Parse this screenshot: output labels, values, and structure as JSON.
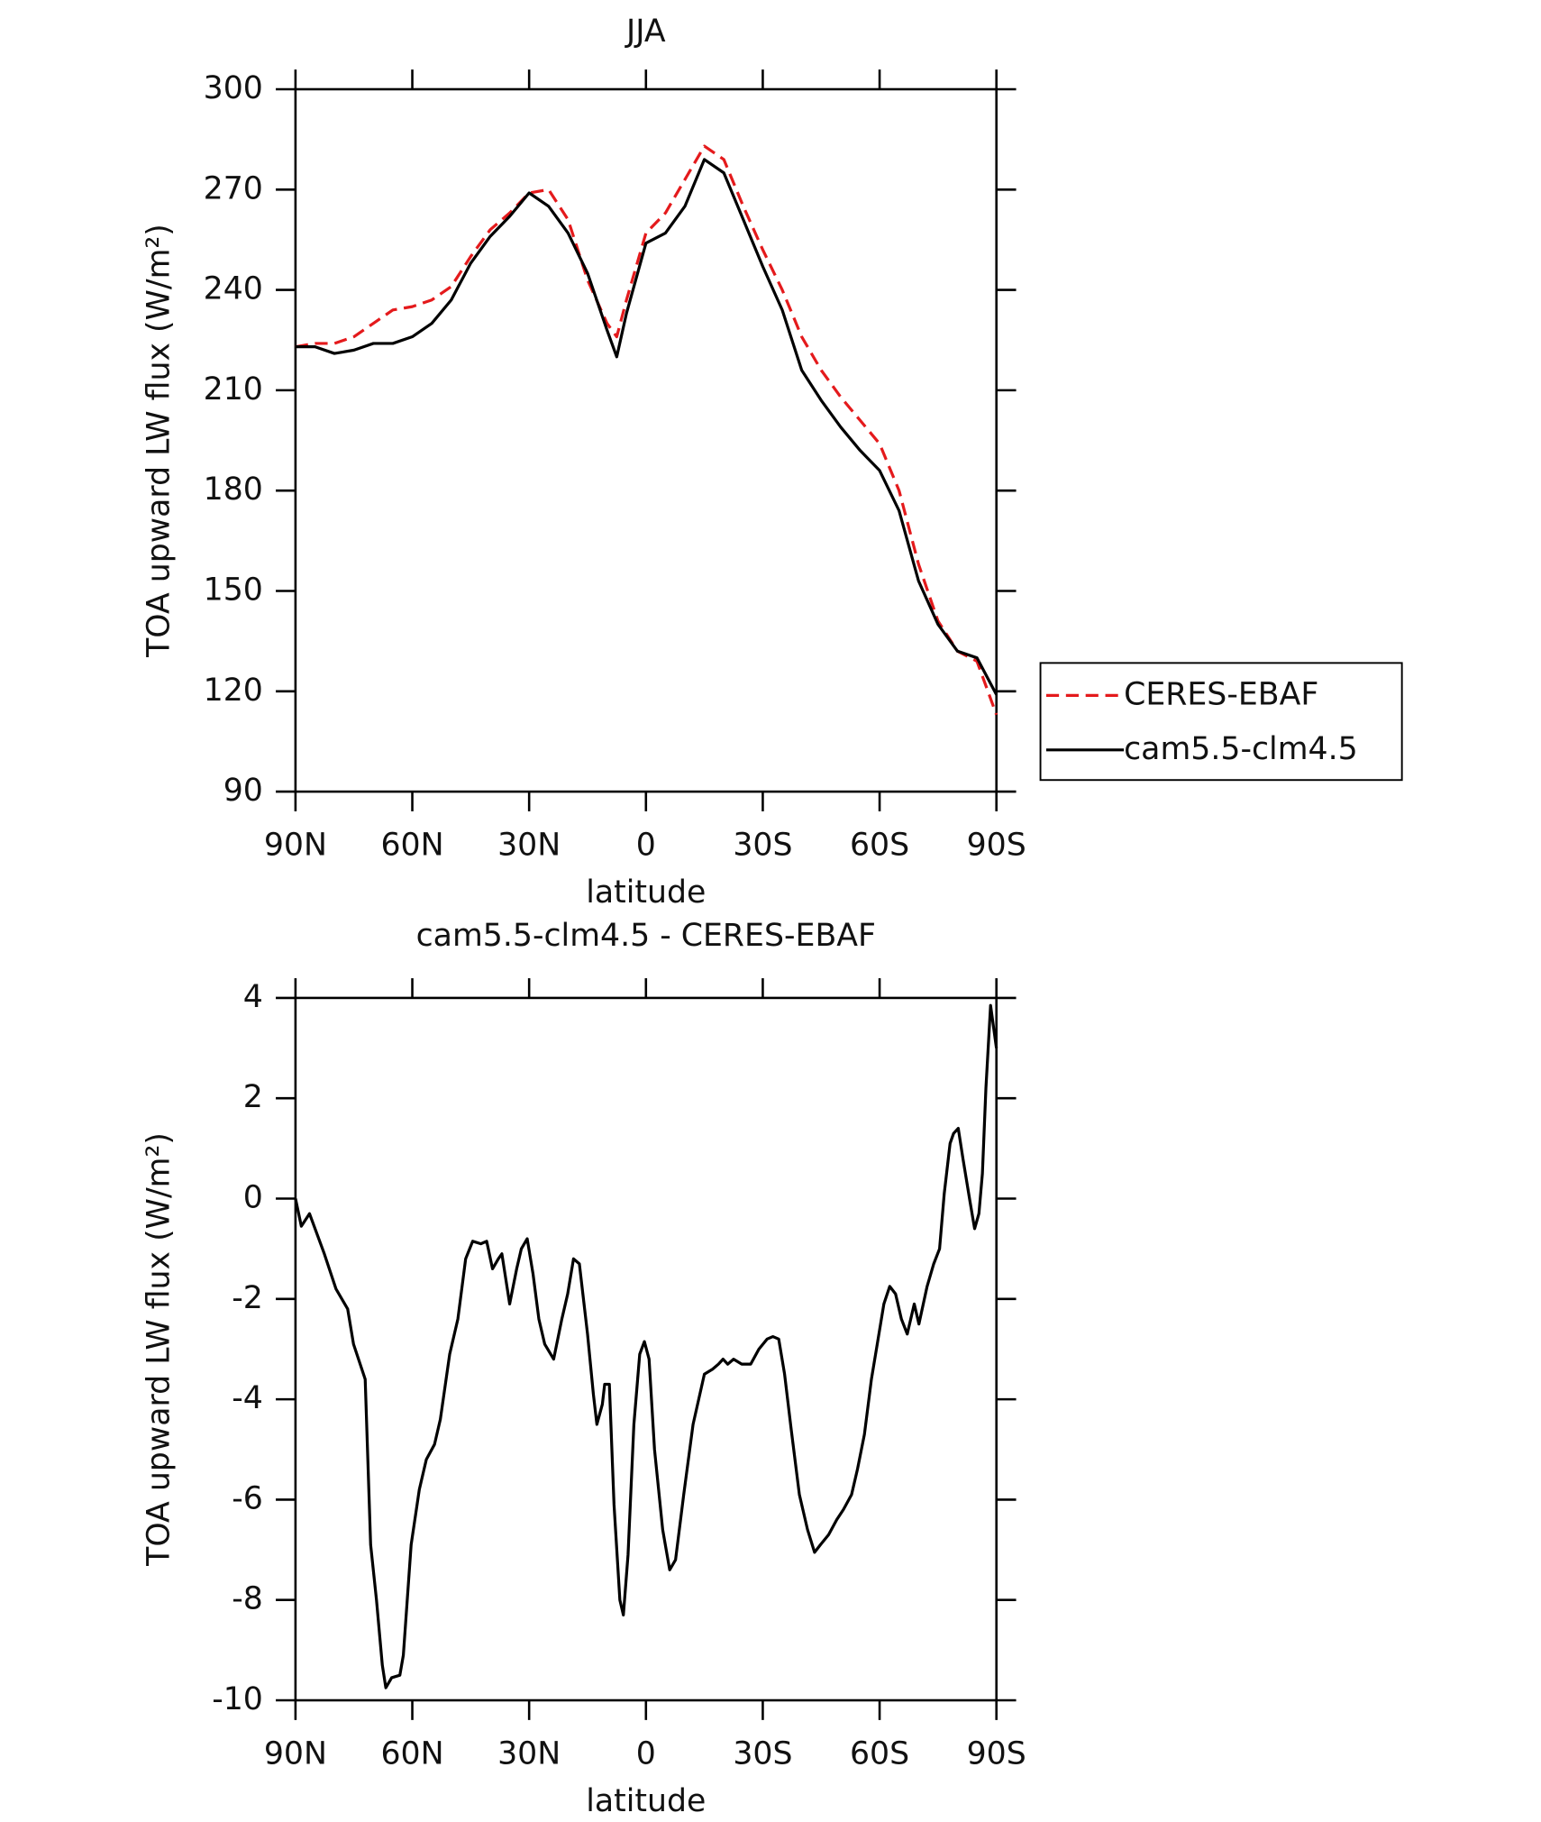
{
  "chart_data": [
    {
      "type": "line",
      "title": "JJA",
      "x_label": "latitude",
      "y_label": "TOA upward LW flux (W/m²)",
      "xlim": [
        90,
        -90
      ],
      "xticks": [
        {
          "value": 90,
          "label": "90N"
        },
        {
          "value": 60,
          "label": "60N"
        },
        {
          "value": 30,
          "label": "30N"
        },
        0,
        {
          "value": -30,
          "label": "30S"
        },
        {
          "value": -60,
          "label": "60S"
        },
        {
          "value": -90,
          "label": "90S"
        }
      ],
      "ylim": [
        90,
        300
      ],
      "yticks": [
        90,
        120,
        150,
        180,
        210,
        240,
        270,
        300
      ],
      "legend": "right",
      "x": [
        90,
        85,
        80,
        75,
        70,
        65,
        60,
        55,
        50,
        45,
        40,
        35,
        30,
        25,
        20,
        15,
        10,
        7.5,
        5,
        0,
        -5,
        -10,
        -15,
        -20,
        -25,
        -30,
        -35,
        -40,
        -45,
        -50,
        -55,
        -60,
        -65,
        -70,
        -75,
        -80,
        -85,
        -90
      ],
      "series": [
        {
          "name": "CERES-EBAF",
          "color": "#e41a1c",
          "dash": true,
          "values": [
            223,
            224,
            224,
            226,
            230,
            234,
            235,
            237,
            241,
            250,
            258,
            263,
            269,
            270,
            261,
            243,
            230,
            226,
            237,
            257,
            263,
            273,
            283,
            279,
            265,
            252,
            240,
            226,
            216,
            208,
            201,
            194,
            180,
            158,
            141,
            132,
            129,
            113
          ]
        },
        {
          "name": "cam5.5-clm4.5",
          "color": "#000000",
          "dash": false,
          "values": [
            223,
            223,
            221,
            222,
            224,
            224,
            226,
            230,
            237,
            248,
            256,
            262,
            269,
            265,
            257,
            245,
            228,
            220,
            233,
            254,
            257,
            265,
            279,
            275,
            261,
            247,
            234,
            216,
            207,
            199,
            192,
            186,
            174,
            153,
            140,
            132,
            130,
            119
          ]
        }
      ]
    },
    {
      "type": "line",
      "title": "cam5.5-clm4.5 - CERES-EBAF",
      "x_label": "latitude",
      "y_label": "TOA upward LW flux (W/m²)",
      "xlim": [
        90,
        -90
      ],
      "xticks": [
        {
          "value": 90,
          "label": "90N"
        },
        {
          "value": 60,
          "label": "60N"
        },
        {
          "value": 30,
          "label": "30N"
        },
        0,
        {
          "value": -30,
          "label": "30S"
        },
        {
          "value": -60,
          "label": "60S"
        },
        {
          "value": -90,
          "label": "90S"
        }
      ],
      "ylim": [
        -10,
        4
      ],
      "yticks": [
        -10,
        -8,
        -6,
        -4,
        -2,
        0,
        2,
        4
      ],
      "color": "#000000",
      "x": [
        90,
        88.5,
        86.4,
        82.6,
        79.6,
        76.6,
        75.1,
        72.1,
        70.7,
        69.2,
        67.7,
        66.8,
        65.3,
        63.2,
        62.3,
        60.3,
        58.2,
        56.4,
        54.3,
        52.8,
        50.4,
        48.3,
        46.3,
        44.5,
        42.4,
        40.9,
        39.4,
        37.9,
        37.0,
        35.0,
        33.2,
        32.0,
        30.5,
        29.0,
        27.5,
        26.0,
        23.7,
        21.6,
        20.1,
        18.6,
        17.1,
        15.0,
        13.5,
        12.6,
        11.2,
        10.6,
        9.4,
        8.2,
        6.7,
        5.8,
        4.6,
        3.1,
        1.6,
        0.4,
        -0.8,
        -2.2,
        -4.3,
        -6.1,
        -7.6,
        -9.7,
        -12.1,
        -15.0,
        -17.1,
        -18.6,
        -19.8,
        -21.0,
        -22.5,
        -24.6,
        -26.9,
        -29.0,
        -31.1,
        -32.6,
        -34.1,
        -35.6,
        -37.3,
        -39.4,
        -41.5,
        -43.3,
        -44.8,
        -46.9,
        -49.0,
        -50.7,
        -52.8,
        -54.3,
        -56.1,
        -57.9,
        -59.4,
        -61.1,
        -62.6,
        -64.1,
        -65.6,
        -67.1,
        -68.9,
        -70.1,
        -72.2,
        -73.9,
        -75.4,
        -76.6,
        -78.1,
        -79.0,
        -80.2,
        -81.4,
        -83.2,
        -84.4,
        -85.5,
        -86.4,
        -87.3,
        -88.5,
        -90
      ],
      "values": [
        0.0,
        -0.55,
        -0.3,
        -1.1,
        -1.8,
        -2.2,
        -2.9,
        -3.6,
        -6.9,
        -8.0,
        -9.3,
        -9.75,
        -9.55,
        -9.5,
        -9.1,
        -6.9,
        -5.8,
        -5.2,
        -4.9,
        -4.4,
        -3.1,
        -2.4,
        -1.2,
        -0.85,
        -0.9,
        -0.85,
        -1.4,
        -1.2,
        -1.1,
        -2.1,
        -1.4,
        -1.0,
        -0.8,
        -1.5,
        -2.4,
        -2.9,
        -3.2,
        -2.4,
        -1.9,
        -1.2,
        -1.3,
        -2.7,
        -3.9,
        -4.5,
        -4.1,
        -3.7,
        -3.7,
        -6.1,
        -8.0,
        -8.3,
        -7.1,
        -4.5,
        -3.1,
        -2.85,
        -3.2,
        -5.0,
        -6.6,
        -7.4,
        -7.2,
        -5.9,
        -4.5,
        -3.5,
        -3.4,
        -3.3,
        -3.2,
        -3.3,
        -3.2,
        -3.3,
        -3.3,
        -3.0,
        -2.8,
        -2.75,
        -2.8,
        -3.5,
        -4.6,
        -5.9,
        -6.6,
        -7.05,
        -6.9,
        -6.7,
        -6.4,
        -6.2,
        -5.9,
        -5.4,
        -4.7,
        -3.6,
        -2.9,
        -2.1,
        -1.75,
        -1.9,
        -2.4,
        -2.7,
        -2.1,
        -2.5,
        -1.75,
        -1.3,
        -1.0,
        0.1,
        1.1,
        1.3,
        1.4,
        0.8,
        -0.05,
        -0.6,
        -0.3,
        0.5,
        2.2,
        3.85,
        3.0
      ]
    }
  ]
}
